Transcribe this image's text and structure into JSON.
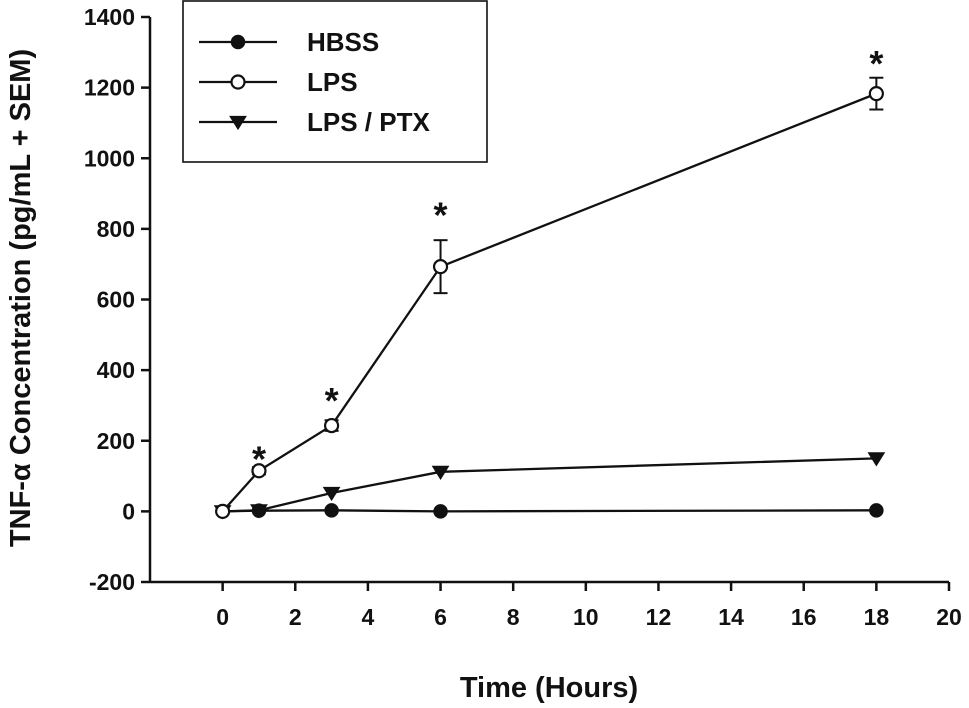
{
  "chart_data": {
    "type": "line",
    "xlabel": "Time (Hours)",
    "ylabel": "TNF-α Concentration (pg/mL + SEM)",
    "xlim": [
      -2,
      20
    ],
    "ylim": [
      -200,
      1400
    ],
    "xticks": [
      0,
      2,
      4,
      6,
      8,
      10,
      12,
      14,
      16,
      18,
      20
    ],
    "yticks": [
      -200,
      0,
      200,
      400,
      600,
      800,
      1000,
      1200,
      1400
    ],
    "x": [
      0,
      1,
      3,
      6,
      18
    ],
    "legend_position": "top-left",
    "grid": false,
    "series": [
      {
        "name": "HBSS",
        "marker": "filled-circle",
        "y": [
          0,
          2,
          3,
          0,
          3
        ],
        "err": [
          0,
          0,
          0,
          0,
          0
        ]
      },
      {
        "name": "LPS",
        "marker": "open-circle",
        "y": [
          0,
          115,
          243,
          693,
          1183
        ],
        "err": [
          0,
          10,
          15,
          75,
          45
        ]
      },
      {
        "name": "LPS / PTX",
        "marker": "filled-triangle-down",
        "y": [
          0,
          3,
          52,
          112,
          150
        ],
        "err": [
          0,
          0,
          0,
          0,
          0
        ]
      }
    ],
    "annotations": [
      {
        "text": "*",
        "x": 1,
        "y": 170
      },
      {
        "text": "*",
        "x": 3,
        "y": 335
      },
      {
        "text": "*",
        "x": 6,
        "y": 860
      },
      {
        "text": "*",
        "x": 18,
        "y": 1290
      }
    ]
  }
}
